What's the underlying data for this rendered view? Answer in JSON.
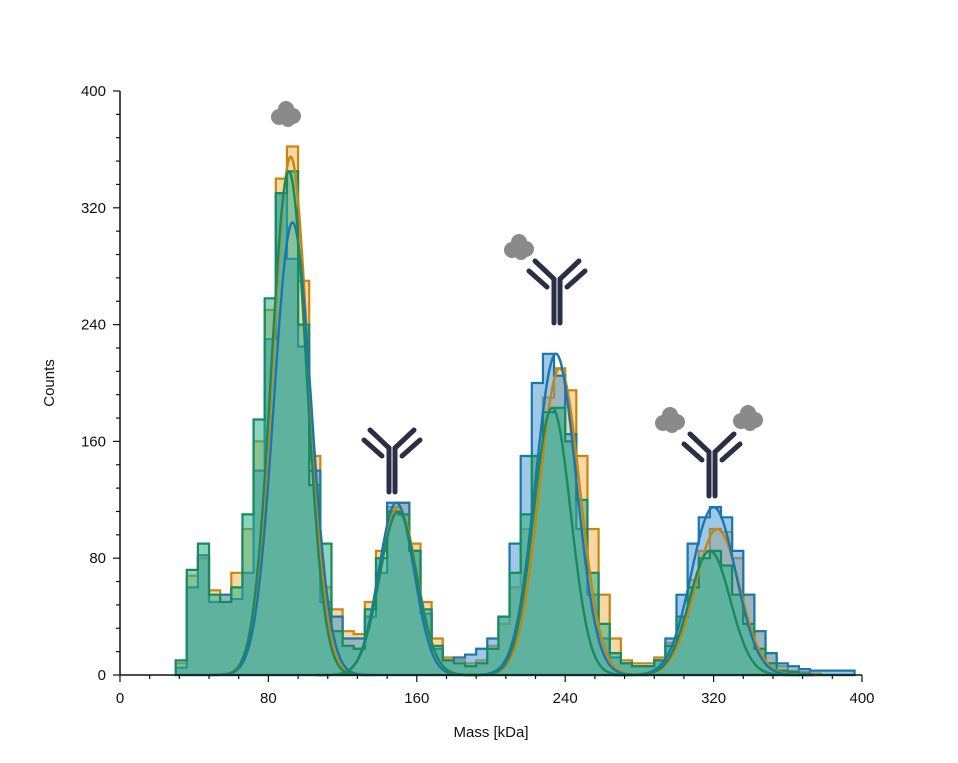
{
  "chart_data": {
    "type": "bar",
    "subtype": "overlaid step histograms with gaussian fits",
    "title": "",
    "xlabel": "Mass [kDa]",
    "ylabel": "Counts",
    "xlim": [
      0,
      400
    ],
    "ylim": [
      0,
      400
    ],
    "x_ticks": [
      "0",
      "80",
      "160",
      "240",
      "320",
      "400"
    ],
    "y_ticks": [
      "0",
      "80",
      "160",
      "240",
      "320",
      "400"
    ],
    "grid": false,
    "bin_width": 6,
    "bin_centers": [
      33,
      39,
      45,
      51,
      57,
      63,
      69,
      75,
      81,
      87,
      93,
      99,
      105,
      111,
      117,
      123,
      129,
      135,
      141,
      147,
      153,
      159,
      165,
      171,
      177,
      183,
      189,
      195,
      201,
      207,
      213,
      219,
      225,
      231,
      237,
      243,
      249,
      255,
      261,
      267,
      273,
      279,
      285,
      291,
      297,
      303,
      309,
      315,
      321,
      327,
      333,
      339,
      345,
      351,
      357,
      363,
      369,
      375,
      381,
      387,
      393
    ],
    "series": [
      {
        "name": "orange",
        "fill": "#EFB85A",
        "stroke": "#C8860F",
        "values": [
          8,
          68,
          80,
          58,
          55,
          70,
          100,
          160,
          250,
          340,
          362,
          270,
          150,
          60,
          45,
          30,
          28,
          50,
          85,
          115,
          118,
          90,
          50,
          25,
          12,
          10,
          8,
          10,
          20,
          35,
          60,
          100,
          150,
          190,
          210,
          195,
          150,
          100,
          55,
          25,
          10,
          8,
          8,
          12,
          22,
          40,
          65,
          85,
          100,
          98,
          80,
          55,
          30,
          15,
          6,
          3,
          2,
          1,
          0,
          0,
          0
        ],
        "fit": [
          [
            92,
            355,
            9.5
          ],
          [
            150,
            115,
            10
          ],
          [
            237,
            210,
            11
          ],
          [
            322,
            100,
            12
          ]
        ]
      },
      {
        "name": "blue",
        "fill": "#4E9BD0",
        "stroke": "#1A76B0",
        "values": [
          5,
          60,
          82,
          50,
          55,
          52,
          70,
          140,
          230,
          330,
          285,
          225,
          140,
          50,
          40,
          25,
          25,
          40,
          70,
          118,
          118,
          85,
          42,
          18,
          10,
          12,
          14,
          18,
          25,
          40,
          90,
          150,
          200,
          220,
          205,
          165,
          100,
          55,
          25,
          12,
          8,
          6,
          6,
          10,
          25,
          55,
          90,
          108,
          115,
          108,
          85,
          55,
          30,
          15,
          8,
          6,
          4,
          3,
          3,
          3,
          3
        ],
        "fit": [
          [
            93,
            310,
            10
          ],
          [
            149,
            118,
            9.5
          ],
          [
            235,
            220,
            11
          ],
          [
            320,
            115,
            12
          ]
        ]
      },
      {
        "name": "green",
        "fill": "#2FB085",
        "stroke": "#178A62",
        "values": [
          10,
          72,
          90,
          55,
          50,
          60,
          110,
          175,
          258,
          330,
          345,
          240,
          130,
          90,
          30,
          20,
          18,
          45,
          80,
          112,
          110,
          85,
          45,
          20,
          10,
          8,
          6,
          8,
          18,
          40,
          70,
          110,
          150,
          180,
          183,
          160,
          120,
          70,
          35,
          15,
          8,
          6,
          6,
          10,
          20,
          40,
          60,
          80,
          85,
          75,
          55,
          35,
          18,
          8,
          3,
          2,
          1,
          0,
          0,
          0,
          0
        ],
        "fit": [
          [
            91,
            345,
            9.5
          ],
          [
            150,
            112,
            10
          ],
          [
            233,
            183,
            10
          ],
          [
            318,
            85,
            11
          ]
        ]
      }
    ],
    "annotations": [
      {
        "label": "protein-blob",
        "x": 92
      },
      {
        "label": "antibody",
        "x": 150
      },
      {
        "label": "antibody-with-one-protein",
        "x": 237
      },
      {
        "label": "antibody-with-two-proteins",
        "x": 320
      }
    ]
  }
}
